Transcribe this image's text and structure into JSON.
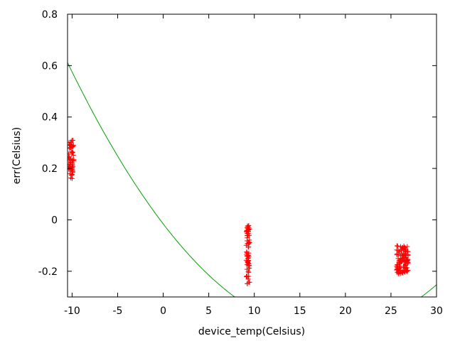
{
  "chart_data": {
    "type": "scatter",
    "xlabel": "device_temp(Celsius)",
    "ylabel": "err(Celsius)",
    "xlim": [
      -10.5,
      30
    ],
    "ylim": [
      -0.3,
      0.8
    ],
    "xticks": [
      -10,
      -5,
      0,
      5,
      10,
      15,
      20,
      25,
      30
    ],
    "yticks": [
      -0.2,
      0,
      0.2,
      0.4,
      0.6,
      0.8
    ],
    "xtick_labels": [
      "-10",
      "-5",
      "0",
      "5",
      "10",
      "15",
      "20",
      "25",
      "30"
    ],
    "ytick_labels": [
      "-0.2",
      "0",
      "0.2",
      "0.4",
      "0.6",
      "0.8"
    ],
    "grid": false,
    "series": [
      {
        "kind": "scatter",
        "marker": "+",
        "color": "#ff0000",
        "clusters": [
          {
            "x_range": [
              -10.4,
              -9.8
            ],
            "y_range": [
              0.16,
              0.31
            ],
            "count": 60
          },
          {
            "x_range": [
              9.1,
              9.5
            ],
            "y_range": [
              -0.25,
              -0.02
            ],
            "count": 70
          },
          {
            "x_range": [
              25.6,
              26.9
            ],
            "y_range": [
              -0.21,
              -0.1
            ],
            "count": 110
          }
        ]
      },
      {
        "kind": "line",
        "color": "#00a000",
        "fit": {
          "type": "quadratic",
          "a": 0.00128,
          "b": -0.0463,
          "c": -0.0156
        }
      }
    ]
  },
  "colors": {
    "points": "#ff0000",
    "fit_line": "#00a000",
    "axes": "#000000"
  }
}
